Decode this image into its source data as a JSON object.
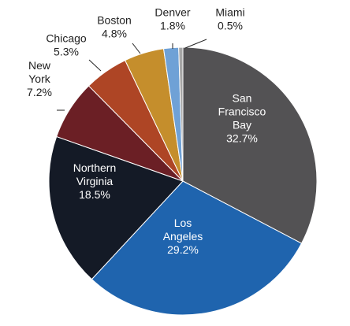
{
  "chart_data": {
    "type": "pie",
    "start": "12 o'clock, clockwise",
    "slices": [
      {
        "label": [
          "San",
          "Francisco",
          "Bay"
        ],
        "value": 32.7,
        "value_text": "32.7%",
        "color": "#535254",
        "label_color": "#ffffff",
        "label_position": "inside"
      },
      {
        "label": [
          "Los",
          "Angeles"
        ],
        "value": 29.2,
        "value_text": "29.2%",
        "color": "#1f64ae",
        "label_color": "#ffffff",
        "label_position": "inside"
      },
      {
        "label": [
          "Northern",
          "Virginia"
        ],
        "value": 18.5,
        "value_text": "18.5%",
        "color": "#141a26",
        "label_color": "#ffffff",
        "label_position": "inside"
      },
      {
        "label": [
          "New",
          "York"
        ],
        "value": 7.2,
        "value_text": "7.2%",
        "color": "#6b1f25",
        "label_color": "#222222",
        "label_position": "outside"
      },
      {
        "label": [
          "Chicago"
        ],
        "value": 5.3,
        "value_text": "5.3%",
        "color": "#ae4525",
        "label_color": "#222222",
        "label_position": "outside"
      },
      {
        "label": [
          "Boston"
        ],
        "value": 4.8,
        "value_text": "4.8%",
        "color": "#c58e2c",
        "label_color": "#222222",
        "label_position": "outside"
      },
      {
        "label": [
          "Denver"
        ],
        "value": 1.8,
        "value_text": "1.8%",
        "color": "#6fa1d6",
        "label_color": "#222222",
        "label_position": "outside"
      },
      {
        "label": [
          "Miami"
        ],
        "value": 0.5,
        "value_text": "0.5%",
        "color": "#a6a6a6",
        "label_color": "#222222",
        "label_position": "outside"
      }
    ],
    "legend": "none"
  }
}
